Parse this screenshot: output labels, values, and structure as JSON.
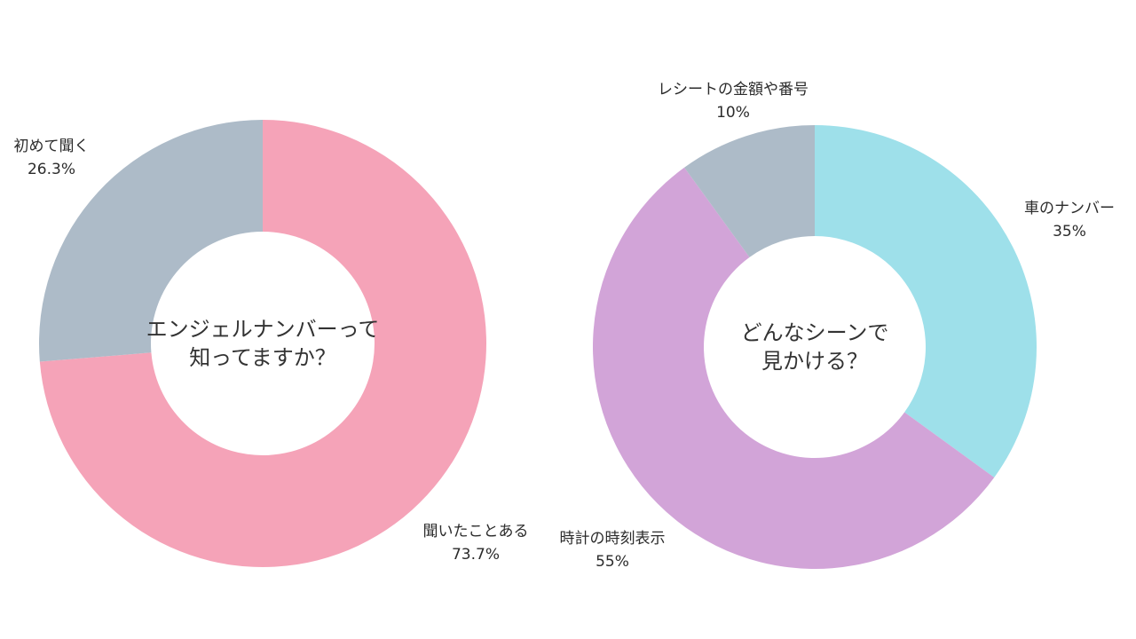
{
  "chart_data": [
    {
      "type": "pie",
      "variant": "donut",
      "center_text": [
        "エンジェルナンバーって",
        "知ってますか？"
      ],
      "slices": [
        {
          "label": "聞いたことある",
          "value": 73.7,
          "value_label": "73.7%",
          "color": "#f5a3b8"
        },
        {
          "label": "初めて聞く",
          "value": 26.3,
          "value_label": "26.3%",
          "color": "#adbbc8"
        }
      ]
    },
    {
      "type": "pie",
      "variant": "donut",
      "center_text": [
        "どんなシーンで",
        "見かける？"
      ],
      "slices": [
        {
          "label": "車のナンバー",
          "value": 35,
          "value_label": "35%",
          "color": "#9ee0ea"
        },
        {
          "label": "時計の時刻表示",
          "value": 55,
          "value_label": "55%",
          "color": "#d2a4d8"
        },
        {
          "label": "レシートの金額や番号",
          "value": 10,
          "value_label": "10%",
          "color": "#adbbc8"
        }
      ]
    }
  ]
}
